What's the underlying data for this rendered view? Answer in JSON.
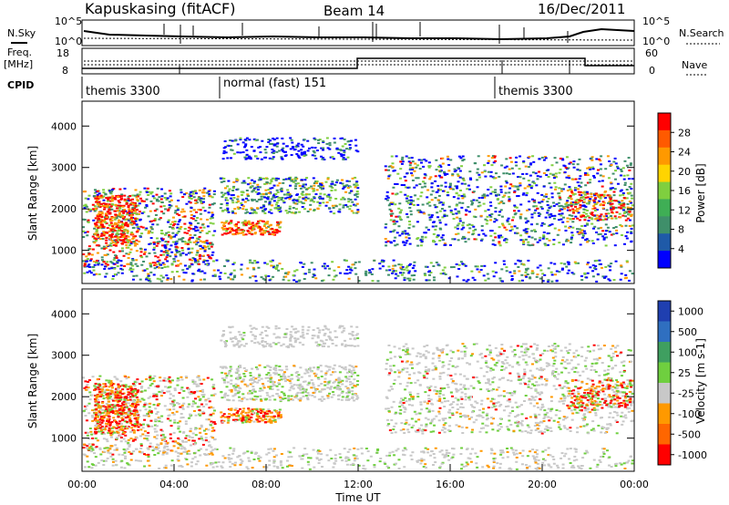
{
  "header": {
    "title": "Kapuskasing (fitACF)",
    "beam": "Beam 14",
    "date": "16/Dec/2011"
  },
  "noise_panel": {
    "left_label": "N.Sky",
    "right_label": "N.Search",
    "left_ticks": [
      "10^5",
      "10^0"
    ],
    "right_ticks": [
      "10^5",
      "10^0"
    ]
  },
  "freq_panel": {
    "left_label_1": "Freq.",
    "left_label_2": "[MHz]",
    "left_ticks": [
      "18",
      "8"
    ],
    "right_label": "Nave",
    "right_ticks": [
      "60",
      "0"
    ]
  },
  "cpid": {
    "label": "CPID",
    "segments": [
      {
        "name": "themis 3300"
      },
      {
        "name": "normal (fast) 151"
      },
      {
        "name": "themis 3300"
      }
    ]
  },
  "colors": {
    "power_scale": [
      "#0000ff",
      "#1f5aa8",
      "#3f8f6a",
      "#3fae55",
      "#7fcf3f",
      "#ffd400",
      "#ff9900",
      "#ff5a00",
      "#ff0000"
    ],
    "velocity_scale": [
      "#1f3fb0",
      "#2f6fc0",
      "#3f9f60",
      "#6fcf3f",
      "#c8c8c8",
      "#ff9900",
      "#ff6600",
      "#ff0000"
    ]
  },
  "chart_data": [
    {
      "type": "heatmap",
      "title": "",
      "xlabel": "",
      "ylabel": "Slant Range [km]",
      "yticks": [
        "1000",
        "2000",
        "3000",
        "4000"
      ],
      "colorbar_label": "Power [dB]",
      "colorbar_ticks": [
        "4",
        "8",
        "12",
        "16",
        "20",
        "24",
        "28"
      ],
      "ylim": [
        200,
        4600
      ]
    },
    {
      "type": "heatmap",
      "title": "",
      "xlabel": "Time UT",
      "ylabel": "Slant Range [km]",
      "xticks": [
        "00:00",
        "04:00",
        "08:00",
        "12:00",
        "16:00",
        "20:00",
        "00:00"
      ],
      "yticks": [
        "1000",
        "2000",
        "3000",
        "4000"
      ],
      "colorbar_label": "Velocity [m s-1]",
      "colorbar_ticks": [
        "1000",
        "500",
        "100",
        "25",
        "-25",
        "-100",
        "-500",
        "-1000"
      ],
      "ylim": [
        200,
        4600
      ]
    }
  ]
}
